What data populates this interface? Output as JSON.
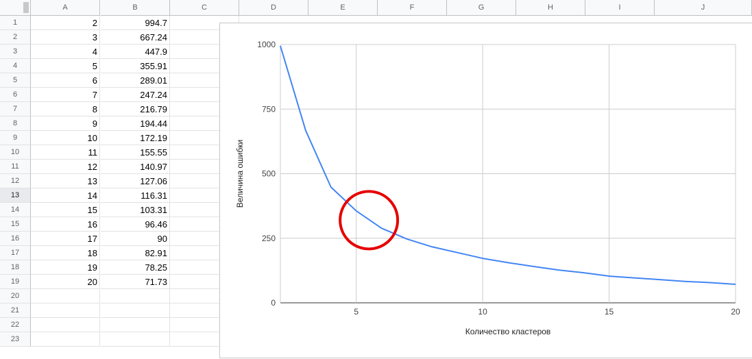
{
  "sheet": {
    "columns": [
      "A",
      "B",
      "C",
      "D",
      "E",
      "F",
      "G",
      "H",
      "I",
      "J"
    ],
    "rows": [
      "1",
      "2",
      "3",
      "4",
      "5",
      "6",
      "7",
      "8",
      "9",
      "10",
      "11",
      "12",
      "13",
      "14",
      "15",
      "16",
      "17",
      "18",
      "19",
      "20",
      "21",
      "22",
      "23"
    ],
    "selected_row": "13",
    "data": [
      [
        "2",
        "994.7"
      ],
      [
        "3",
        "667.24"
      ],
      [
        "4",
        "447.9"
      ],
      [
        "5",
        "355.91"
      ],
      [
        "6",
        "289.01"
      ],
      [
        "7",
        "247.24"
      ],
      [
        "8",
        "216.79"
      ],
      [
        "9",
        "194.44"
      ],
      [
        "10",
        "172.19"
      ],
      [
        "11",
        "155.55"
      ],
      [
        "12",
        "140.97"
      ],
      [
        "13",
        "127.06"
      ],
      [
        "14",
        "116.31"
      ],
      [
        "15",
        "103.31"
      ],
      [
        "16",
        "96.46"
      ],
      [
        "17",
        "90"
      ],
      [
        "18",
        "82.91"
      ],
      [
        "19",
        "78.25"
      ],
      [
        "20",
        "71.73"
      ]
    ]
  },
  "chart_data": {
    "type": "line",
    "title": "",
    "xlabel": "Количество кластеров",
    "ylabel": "Величина ошибки",
    "x": [
      2,
      3,
      4,
      5,
      6,
      7,
      8,
      9,
      10,
      11,
      12,
      13,
      14,
      15,
      16,
      17,
      18,
      19,
      20
    ],
    "series": [
      {
        "values": [
          994.7,
          667.24,
          447.9,
          355.91,
          289.01,
          247.24,
          216.79,
          194.44,
          172.19,
          155.55,
          140.97,
          127.06,
          116.31,
          103.31,
          96.46,
          90,
          82.91,
          78.25,
          71.73
        ],
        "color": "#4285f4"
      }
    ],
    "xlim": [
      2,
      20
    ],
    "ylim": [
      0,
      1000
    ],
    "xticks": [
      "5",
      "10",
      "15",
      "20"
    ],
    "yticks": [
      "0",
      "250",
      "500",
      "750",
      "1000"
    ],
    "grid": true,
    "annotation": {
      "shape": "circle",
      "color": "#e60000",
      "x": 5.5,
      "y": 320
    }
  }
}
